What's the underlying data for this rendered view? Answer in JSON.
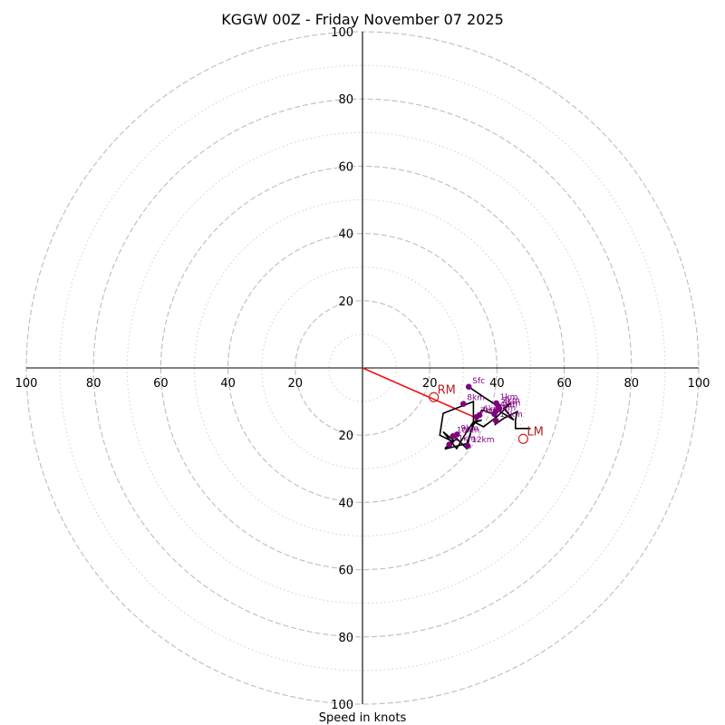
{
  "chart_data": {
    "type": "hodograph",
    "title": "KGGW 00Z - Friday November 07 2025",
    "xlabel": "Speed in knots",
    "range": [
      -100,
      100
    ],
    "major_rings": [
      20,
      40,
      60,
      80,
      100
    ],
    "minor_rings": [
      10,
      30,
      50,
      70,
      90
    ],
    "x_ticks": [
      {
        "value": -100,
        "label": "100"
      },
      {
        "value": -80,
        "label": "80"
      },
      {
        "value": -60,
        "label": "60"
      },
      {
        "value": -40,
        "label": "40"
      },
      {
        "value": -20,
        "label": "20"
      },
      {
        "value": 20,
        "label": "20"
      },
      {
        "value": 40,
        "label": "40"
      },
      {
        "value": 60,
        "label": "60"
      },
      {
        "value": 80,
        "label": "80"
      },
      {
        "value": 100,
        "label": "100"
      }
    ],
    "y_ticks": [
      {
        "value": 100,
        "label": "100"
      },
      {
        "value": 80,
        "label": "80"
      },
      {
        "value": 60,
        "label": "60"
      },
      {
        "value": 40,
        "label": "40"
      },
      {
        "value": 20,
        "label": "20"
      },
      {
        "value": -20,
        "label": "20"
      },
      {
        "value": -40,
        "label": "40"
      },
      {
        "value": -60,
        "label": "60"
      },
      {
        "value": -80,
        "label": "80"
      },
      {
        "value": -100,
        "label": "100"
      }
    ],
    "hodograph_trace": [
      [
        31.6,
        -5.6
      ],
      [
        34.5,
        -7.6
      ],
      [
        37.5,
        -9.6
      ],
      [
        40.4,
        -11.4
      ],
      [
        41.0,
        -13.0
      ],
      [
        45.0,
        -15.5
      ],
      [
        42.0,
        -12.0
      ],
      [
        44.0,
        -10.5
      ],
      [
        40.0,
        -14.5
      ],
      [
        36.0,
        -17.5
      ],
      [
        33.0,
        -16.0
      ],
      [
        31.0,
        -19.0
      ],
      [
        28.0,
        -24.0
      ],
      [
        24.0,
        -19.0
      ],
      [
        27.0,
        -21.5
      ],
      [
        24.5,
        -24.0
      ],
      [
        28.0,
        -21.0
      ],
      [
        31.0,
        -24.0
      ],
      [
        33.0,
        -16.0
      ],
      [
        35.5,
        -15.5
      ],
      [
        34.0,
        -16.0
      ],
      [
        33.0,
        -16.0
      ],
      [
        33.0,
        -10.0
      ],
      [
        24.0,
        -13.5
      ],
      [
        23.0,
        -20.0
      ],
      [
        27.0,
        -22.0
      ],
      [
        25.0,
        -24.0
      ],
      [
        31.0,
        -22.5
      ],
      [
        33.0,
        -17.0
      ],
      [
        35.5,
        -12.5
      ],
      [
        37.0,
        -13.0
      ],
      [
        37.6,
        -13.3
      ],
      [
        39.5,
        -13.6
      ],
      [
        39.5,
        -16.8
      ],
      [
        42.0,
        -15.0
      ],
      [
        46.0,
        -13.0
      ],
      [
        45.5,
        -15.5
      ],
      [
        45.5,
        -18.0
      ],
      [
        50.0,
        -18.0
      ]
    ],
    "heights": [
      {
        "label": "Sfc",
        "u": 31.6,
        "v": -5.6
      },
      {
        "label": "1km",
        "u": 39.8,
        "v": -10.5
      },
      {
        "label": "2km",
        "u": 40.4,
        "v": -11.4
      },
      {
        "label": "3km",
        "u": 40.6,
        "v": -12.2
      },
      {
        "label": "4km",
        "u": 39.7,
        "v": -12.8
      },
      {
        "label": "5km",
        "u": 39.2,
        "v": -13.7
      },
      {
        "label": "6km",
        "u": 34.8,
        "v": -14.0
      },
      {
        "label": "7km",
        "u": 33.9,
        "v": -14.6
      },
      {
        "label": "8km",
        "u": 30.0,
        "v": -10.7
      },
      {
        "label": "9km",
        "u": 28.1,
        "v": -19.8
      },
      {
        "label": "10km",
        "u": 26.9,
        "v": -20.3
      },
      {
        "label": "11km",
        "u": 25.8,
        "v": -22.8
      },
      {
        "label": "12km",
        "u": 31.3,
        "v": -23.2
      },
      {
        "label": "13km",
        "u": 39.7,
        "v": -15.7
      }
    ],
    "storm_motion": {
      "rm": {
        "label": "RM",
        "u": 21.2,
        "v": -8.7
      },
      "lm": {
        "label": "LM",
        "u": 47.8,
        "v": -21.1
      }
    },
    "shear_vector": {
      "from": [
        0,
        0
      ],
      "to": [
        33.0,
        -14.5
      ]
    }
  }
}
